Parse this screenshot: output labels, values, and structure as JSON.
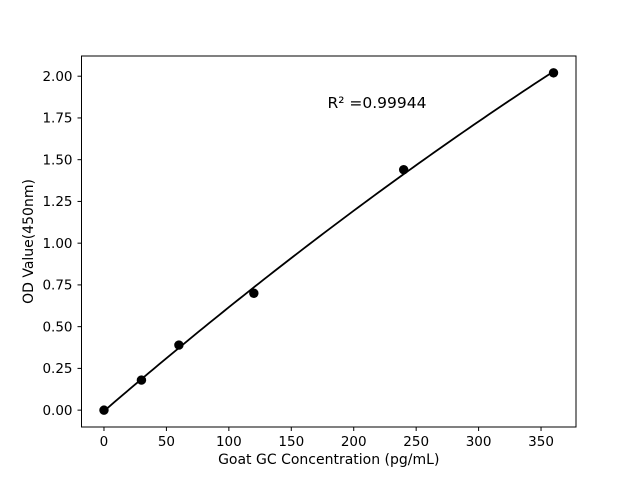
{
  "figure": {
    "background": "#ffffff"
  },
  "chart_data": {
    "type": "scatter",
    "title": "",
    "xlabel": "Goat GC Concentration (pg/mL)",
    "ylabel": "OD Value(450nm)",
    "x": [
      0,
      30,
      60,
      120,
      240,
      360
    ],
    "y": [
      0.0,
      0.18,
      0.39,
      0.7,
      1.44,
      2.02
    ],
    "fit": "quadratic",
    "annotation": {
      "text": "R² =0.99944",
      "x": 179,
      "y": 1.81
    },
    "xticks": {
      "values": [
        0,
        50,
        100,
        150,
        200,
        250,
        300,
        350
      ],
      "labels": [
        "0",
        "50",
        "100",
        "150",
        "200",
        "250",
        "300",
        "350"
      ]
    },
    "yticks": {
      "values": [
        0.0,
        0.25,
        0.5,
        0.75,
        1.0,
        1.25,
        1.5,
        1.75,
        2.0
      ],
      "labels": [
        "0.00",
        "0.25",
        "0.50",
        "0.75",
        "1.00",
        "1.25",
        "1.50",
        "1.75",
        "2.00"
      ]
    },
    "xlim": [
      -18,
      378
    ],
    "ylim": [
      -0.101,
      2.121
    ],
    "grid": false,
    "legend": null,
    "colors": {
      "marker": "#000000",
      "line": "#000000",
      "axis": "#000000",
      "background": "#ffffff"
    }
  }
}
